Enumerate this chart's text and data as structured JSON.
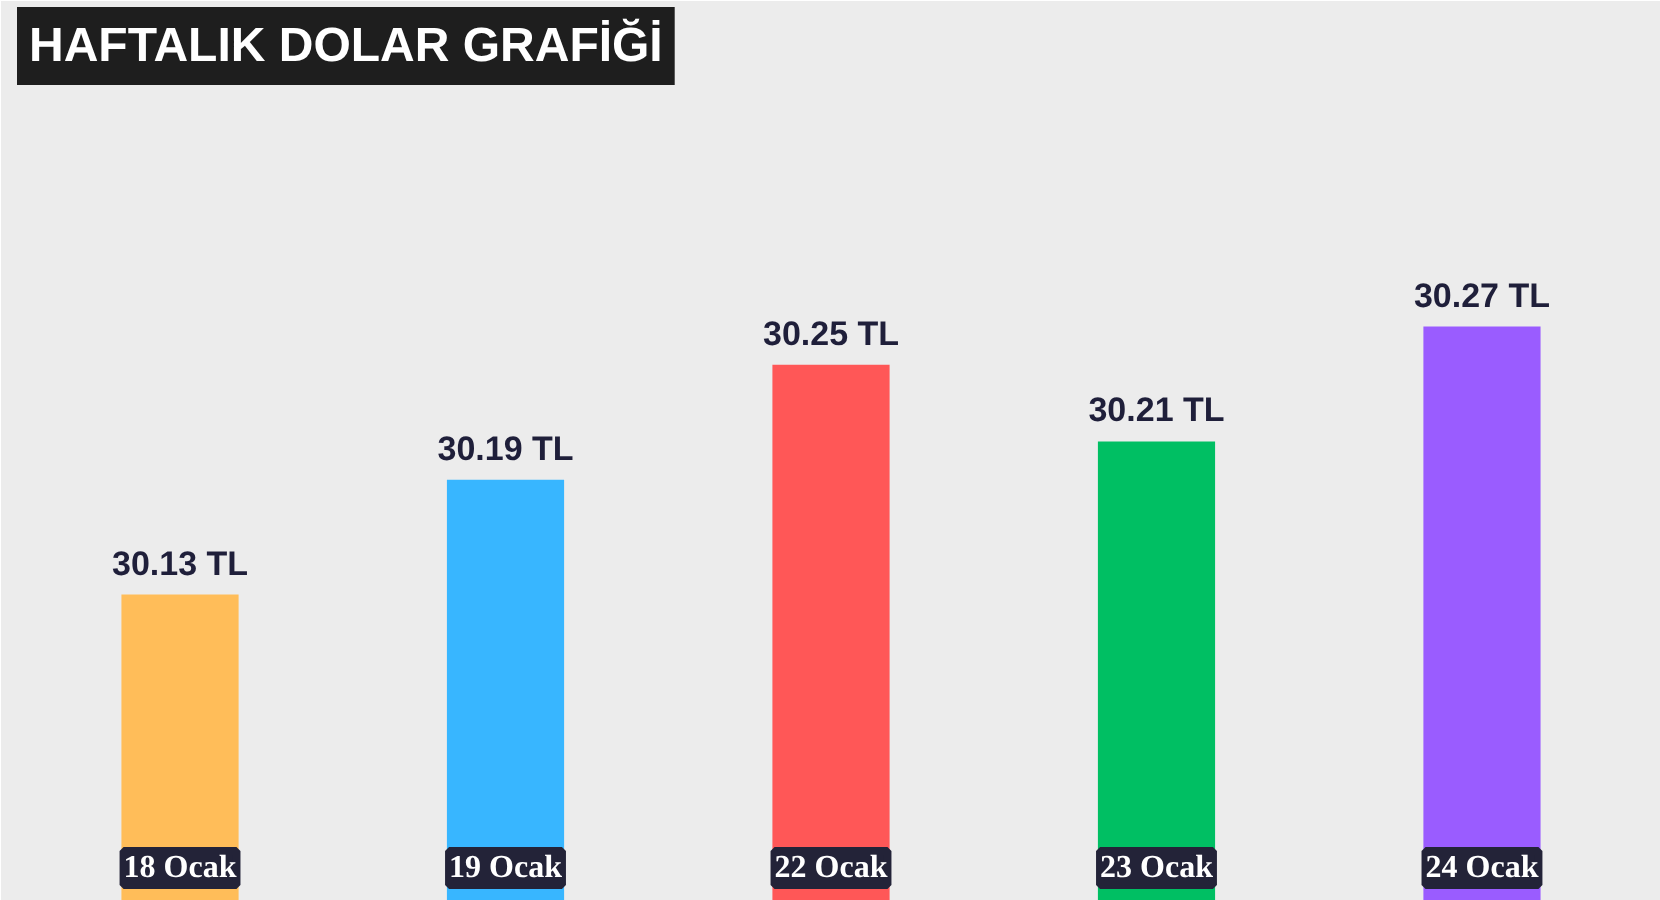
{
  "chart_data": {
    "type": "bar",
    "title": "HAFTALIK DOLAR GRAFİĞİ",
    "categories": [
      "18 Ocak",
      "19 Ocak",
      "22 Ocak",
      "23 Ocak",
      "24 Ocak"
    ],
    "values": [
      30.13,
      30.19,
      30.25,
      30.21,
      30.27
    ],
    "colors": [
      "#ffbd59",
      "#38b6ff",
      "#ff5757",
      "#00bf63",
      "#9a5cff"
    ],
    "value_labels": [
      "30.13 TL",
      "30.19 TL",
      "30.25 TL",
      "30.21 TL",
      "30.27 TL"
    ],
    "ylim": [
      29.97,
      30.44
    ],
    "grid": false
  }
}
